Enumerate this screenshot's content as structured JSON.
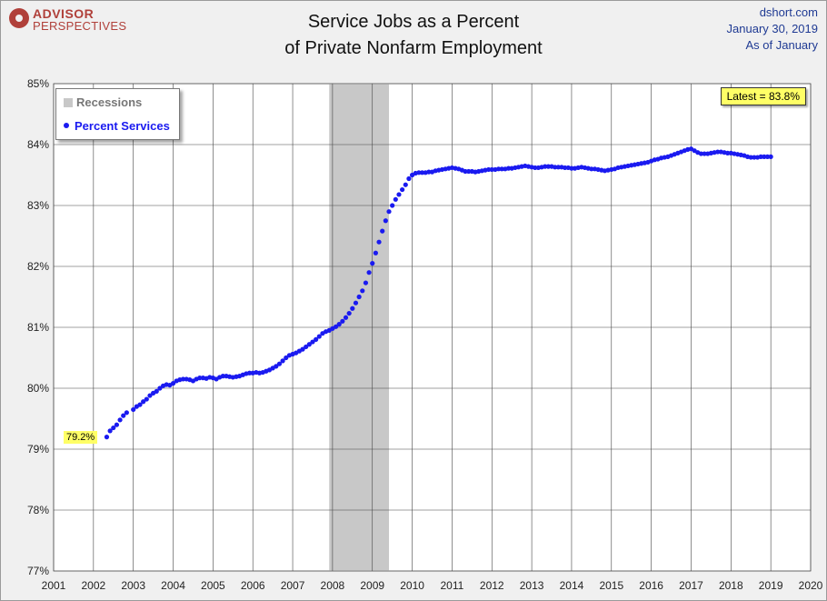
{
  "header": {
    "logo_line1": "ADVISOR",
    "logo_line2": "PERSPECTIVES",
    "title_line1": "Service Jobs as a Percent",
    "title_line2": "of Private Nonfarm Employment",
    "source": "dshort.com",
    "date": "January 30, 2019",
    "asof": "As of January"
  },
  "legend": {
    "recessions": "Recessions",
    "series": "Percent Services"
  },
  "annotations": {
    "latest": "Latest = 83.8%",
    "start": "79.2%"
  },
  "colors": {
    "series": "#1a1af0",
    "recession": "#c8c8c8",
    "annotation_bg": "#ffff66",
    "source_text": "#1f3a93"
  },
  "chart_data": {
    "type": "scatter",
    "title": "Service Jobs as a Percent of Private Nonfarm Employment",
    "xlabel": "",
    "ylabel": "",
    "xlim": [
      2001,
      2020
    ],
    "ylim": [
      77,
      85
    ],
    "x_ticks": [
      "2001",
      "2002",
      "2003",
      "2004",
      "2005",
      "2006",
      "2007",
      "2008",
      "2009",
      "2010",
      "2011",
      "2012",
      "2013",
      "2014",
      "2015",
      "2016",
      "2017",
      "2018",
      "2019",
      "2020"
    ],
    "y_ticks": [
      "77%",
      "78%",
      "79%",
      "80%",
      "81%",
      "82%",
      "83%",
      "84%",
      "85%"
    ],
    "grid": true,
    "legend_position": "top-left",
    "recessions": [
      [
        2007.917,
        2009.417
      ]
    ],
    "series": [
      {
        "name": "Percent Services",
        "points_by_year": [
          {
            "year": 2002,
            "from_month": 5,
            "values": [
              79.2,
              79.3,
              79.35,
              79.4,
              79.48,
              79.55,
              79.6
            ]
          },
          {
            "year": 2003,
            "values": [
              79.65,
              79.7,
              79.73,
              79.78,
              79.82,
              79.88,
              79.92,
              79.95,
              80.0,
              80.04,
              80.06,
              80.05
            ]
          },
          {
            "year": 2004,
            "values": [
              80.08,
              80.12,
              80.14,
              80.15,
              80.15,
              80.14,
              80.12,
              80.15,
              80.17,
              80.17,
              80.16,
              80.18
            ]
          },
          {
            "year": 2005,
            "values": [
              80.17,
              80.15,
              80.18,
              80.2,
              80.2,
              80.19,
              80.18,
              80.19,
              80.2,
              80.22,
              80.24,
              80.25
            ]
          },
          {
            "year": 2006,
            "values": [
              80.25,
              80.26,
              80.25,
              80.26,
              80.28,
              80.3,
              80.33,
              80.36,
              80.4,
              80.45,
              80.5,
              80.54
            ]
          },
          {
            "year": 2007,
            "values": [
              80.56,
              80.58,
              80.61,
              80.64,
              80.68,
              80.72,
              80.76,
              80.8,
              80.85,
              80.9,
              80.93,
              80.95
            ]
          },
          {
            "year": 2008,
            "values": [
              80.98,
              81.01,
              81.05,
              81.1,
              81.16,
              81.23,
              81.31,
              81.4,
              81.5,
              81.6,
              81.73,
              81.9
            ]
          },
          {
            "year": 2009,
            "values": [
              82.05,
              82.22,
              82.4,
              82.58,
              82.75,
              82.9,
              83.0,
              83.1,
              83.18,
              83.26,
              83.34,
              83.44
            ]
          },
          {
            "year": 2010,
            "values": [
              83.5,
              83.53,
              83.54,
              83.54,
              83.54,
              83.55,
              83.55,
              83.57,
              83.58,
              83.59,
              83.6,
              83.61
            ]
          },
          {
            "year": 2011,
            "values": [
              83.62,
              83.61,
              83.6,
              83.58,
              83.56,
              83.56,
              83.56,
              83.55,
              83.56,
              83.57,
              83.58,
              83.59
            ]
          },
          {
            "year": 2012,
            "values": [
              83.59,
              83.59,
              83.6,
              83.6,
              83.6,
              83.61,
              83.61,
              83.62,
              83.63,
              83.64,
              83.65,
              83.64
            ]
          },
          {
            "year": 2013,
            "values": [
              83.63,
              83.62,
              83.62,
              83.63,
              83.64,
              83.64,
              83.64,
              83.63,
              83.63,
              83.63,
              83.62,
              83.62
            ]
          },
          {
            "year": 2014,
            "values": [
              83.61,
              83.61,
              83.62,
              83.63,
              83.62,
              83.61,
              83.6,
              83.6,
              83.59,
              83.58,
              83.57,
              83.58
            ]
          },
          {
            "year": 2015,
            "values": [
              83.59,
              83.6,
              83.62,
              83.63,
              83.64,
              83.65,
              83.66,
              83.67,
              83.68,
              83.69,
              83.7,
              83.71
            ]
          },
          {
            "year": 2016,
            "values": [
              83.73,
              83.75,
              83.76,
              83.78,
              83.79,
              83.8,
              83.82,
              83.84,
              83.86,
              83.88,
              83.9,
              83.92
            ]
          },
          {
            "year": 2017,
            "values": [
              83.93,
              83.9,
              83.87,
              83.85,
              83.85,
              83.85,
              83.86,
              83.87,
              83.88,
              83.88,
              83.87,
              83.86
            ]
          },
          {
            "year": 2018,
            "values": [
              83.86,
              83.85,
              83.84,
              83.83,
              83.82,
              83.8,
              83.79,
              83.79,
              83.79,
              83.8,
              83.8,
              83.8
            ]
          },
          {
            "year": 2019,
            "values": [
              83.8
            ]
          }
        ]
      }
    ]
  }
}
